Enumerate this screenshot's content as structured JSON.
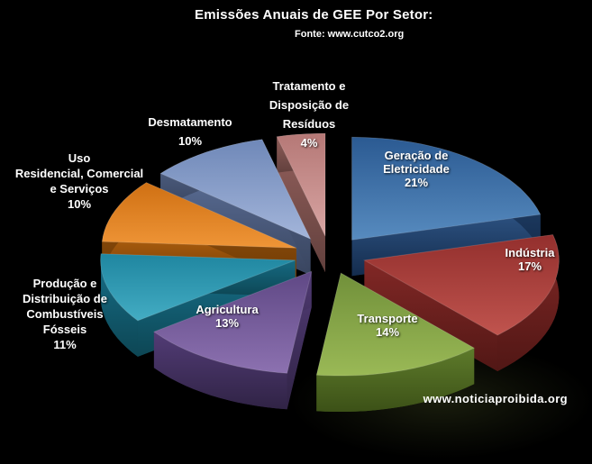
{
  "ui": {
    "title": "Emissões Anuais de GEE Por Setor:",
    "source": "Fonte: www.cutco2.org",
    "watermark": "www.noticiaproibida.org",
    "background_color": "#000000",
    "text_color": "#ffffff"
  },
  "chart_data": {
    "type": "pie",
    "style": "3d-exploded",
    "title": "Emissões Anuais de GEE Por Setor:",
    "source": "Fonte: www.cutco2.org",
    "unit": "%",
    "start_angle_deg": 0,
    "direction": "clockwise",
    "legend": "labels-on-and-around-slices",
    "slices": [
      {
        "name": "Geração de Eletricidade",
        "value": 21,
        "label": "Geração de\nEletricidade\n21%",
        "color_dark": "#2b5a92",
        "color_light": "#578bbf",
        "wall": "#2c5180",
        "wall_dark": "#142c4d"
      },
      {
        "name": "Indústria",
        "value": 17,
        "label": "Indústria\n17%",
        "color_dark": "#932f2d",
        "color_light": "#c0544e",
        "wall": "#822826",
        "wall_dark": "#511715"
      },
      {
        "name": "Transporte",
        "value": 14,
        "label": "Transporte\n14%",
        "color_dark": "#71903a",
        "color_light": "#9ab956",
        "wall": "#5e7b2b",
        "wall_dark": "#3c5117"
      },
      {
        "name": "Agricultura",
        "value": 13,
        "label": "Agricultura\n13%",
        "color_dark": "#5f4885",
        "color_light": "#8c71b0",
        "wall": "#523c76",
        "wall_dark": "#302345"
      },
      {
        "name": "Produção e Distribuição de Combustíveis Fósseis",
        "value": 11,
        "label": "Produção e\nDistribuição de\nCombustíveis\nFósseis\n11%",
        "color_dark": "#1f86a0",
        "color_light": "#43acc3",
        "wall": "#17708a",
        "wall_dark": "#0d4654"
      },
      {
        "name": "Uso Residencial, Comercial e Serviços",
        "value": 10,
        "label": "Uso\nResidencial, Comercial\ne Serviços\n10%",
        "color_dark": "#cf7013",
        "color_light": "#ef9537",
        "wall": "#a65a0d",
        "wall_dark": "#6b3905"
      },
      {
        "name": "Desmatamento",
        "value": 10,
        "label": "Desmatamento\n10%",
        "color_dark": "#6f88b8",
        "color_light": "#a3b5da",
        "wall": "#5a6d95",
        "wall_dark": "#39455f"
      },
      {
        "name": "Tratamento e Disposição de Resíduos",
        "value": 4,
        "label": "Tratamento e\nDisposição de\nResíduos\n4%",
        "color_dark": "#b57876",
        "color_light": "#d8a5a3",
        "wall": "#93605c",
        "wall_dark": "#62403d"
      }
    ]
  }
}
